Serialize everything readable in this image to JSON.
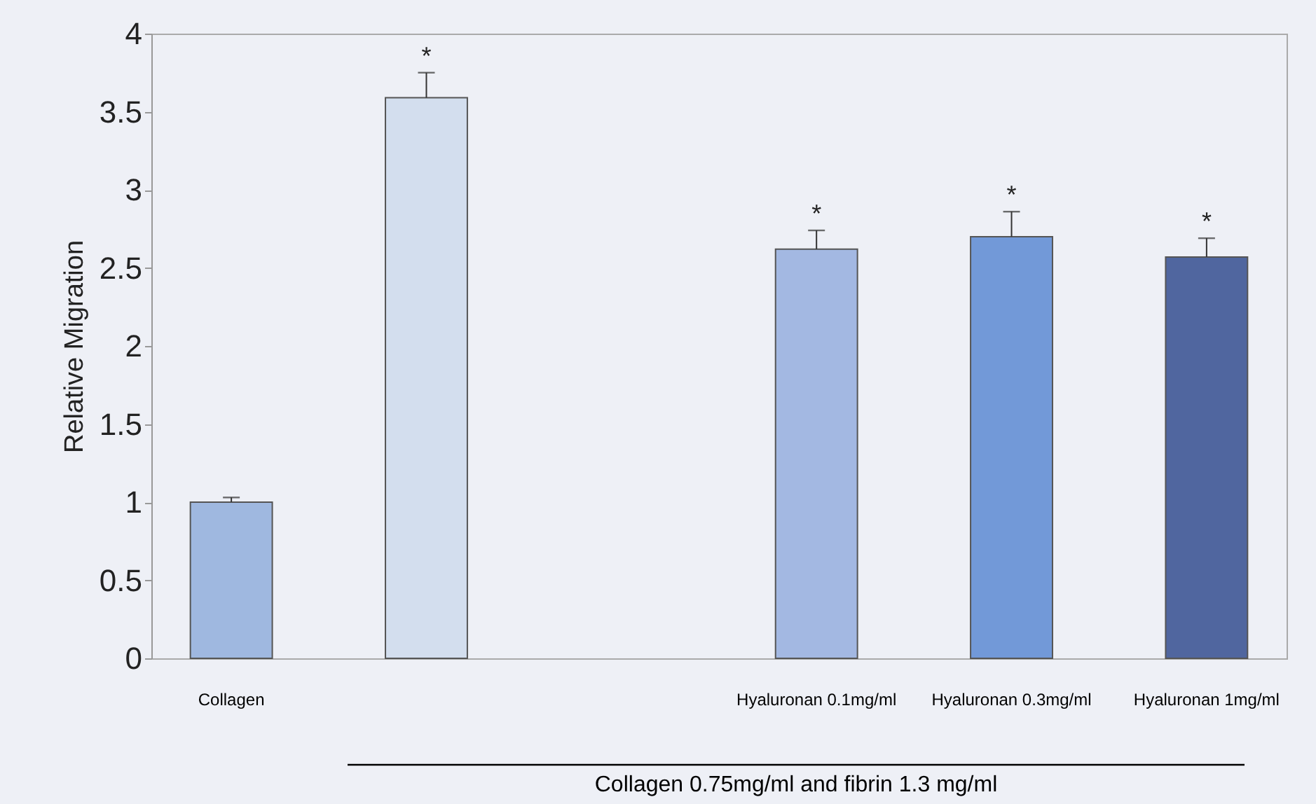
{
  "chart_data": {
    "type": "bar",
    "ylabel": "Relative Migration",
    "categories": [
      "Collagen",
      null,
      null,
      "Hyaluronan 0.1mg/ml",
      "Hyaluronan 0.3mg/ml",
      "Hyaluronan 1mg/ml"
    ],
    "values": [
      1.0,
      3.59,
      null,
      2.62,
      2.7,
      2.57
    ],
    "colors": [
      "#9fb8e0",
      "#d3deee",
      "#ffffff",
      "#a3b8e2",
      "#7299d8",
      "#50669f"
    ],
    "errors": [
      [
        1.0,
        1.03
      ],
      [
        3.59,
        3.75
      ],
      null,
      [
        2.62,
        2.74
      ],
      [
        2.7,
        2.86
      ],
      [
        2.57,
        2.69
      ]
    ],
    "value_labels": [
      null,
      "*",
      null,
      "*",
      "*",
      "*"
    ],
    "ylim": [
      0,
      4
    ],
    "yticks": [
      0,
      0.5,
      1,
      1.5,
      2,
      2.5,
      3,
      3.5,
      4
    ],
    "annotations": [
      "Collagen 0.75mg/ml and fibrin 1.3 mg/ml"
    ],
    "grid": false
  }
}
